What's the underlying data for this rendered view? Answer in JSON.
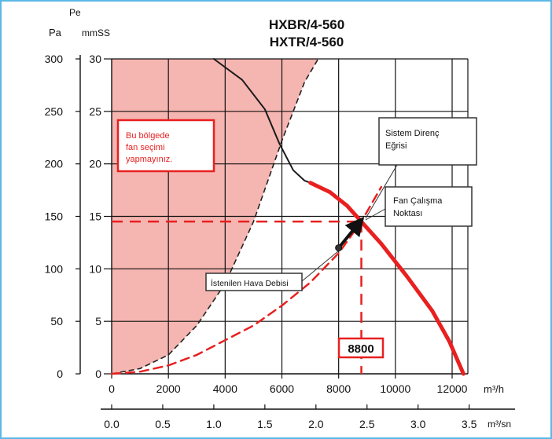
{
  "chart_data": {
    "type": "line",
    "title_lines": [
      "HXBR/4-560",
      "HXTR/4-560"
    ],
    "y_left": {
      "symbol": "Pe",
      "unit_pa": "Pa",
      "unit_mmss": "mmSS",
      "pa_ticks": [
        0,
        50,
        100,
        150,
        200,
        250,
        300
      ],
      "mmss_ticks": [
        0,
        5,
        10,
        15,
        20,
        25,
        30
      ],
      "ylim": [
        0,
        30
      ]
    },
    "x_top": {
      "unit": "m³/h",
      "ticks": [
        0,
        2000,
        4000,
        6000,
        8000,
        10000,
        12000
      ],
      "xlim": [
        0,
        12000
      ]
    },
    "x_bottom": {
      "unit": "m³/sn",
      "tick_labels": [
        "0.0",
        "0.5",
        "1.0",
        "1.5",
        "2.0",
        "2.5",
        "3.0",
        "3.5"
      ],
      "ticks": [
        0.0,
        0.5,
        1.0,
        1.5,
        2.0,
        2.5,
        3.0,
        3.5
      ]
    },
    "grid": true,
    "forbidden_zone": {
      "label_lines": [
        "Bu bölgede",
        "fan seçimi",
        "yapmayınız."
      ],
      "color": "#f5b5b1",
      "boundary": [
        [
          0,
          0
        ],
        [
          1000,
          0.5
        ],
        [
          2000,
          1.8
        ],
        [
          3000,
          4.6
        ],
        [
          4000,
          8.6
        ],
        [
          5000,
          14.5
        ],
        [
          6000,
          22.2
        ],
        [
          6800,
          27.8
        ],
        [
          7280,
          30
        ]
      ]
    },
    "series": [
      {
        "name": "fan_curve_black",
        "color": "#1a1a1a",
        "points": [
          [
            3600,
            30
          ],
          [
            4600,
            28.0
          ],
          [
            5400,
            25.2
          ],
          [
            5900,
            22.0
          ],
          [
            6400,
            19.4
          ],
          [
            6800,
            18.4
          ],
          [
            7000,
            18.2
          ]
        ]
      },
      {
        "name": "fan_curve_red",
        "color": "#e82020",
        "points": [
          [
            7000,
            18.2
          ],
          [
            7700,
            17.3
          ],
          [
            8300,
            16.0
          ],
          [
            8800,
            14.5
          ],
          [
            9500,
            12.4
          ],
          [
            10400,
            9.3
          ],
          [
            11300,
            6.0
          ],
          [
            11900,
            3.1
          ],
          [
            12400,
            0
          ]
        ]
      },
      {
        "name": "system_curve_dashed",
        "color": "#e82020",
        "points": [
          [
            0,
            0
          ],
          [
            1000,
            0.2
          ],
          [
            2000,
            0.8
          ],
          [
            3000,
            1.8
          ],
          [
            4000,
            3.2
          ],
          [
            5000,
            4.6
          ],
          [
            6000,
            6.5
          ],
          [
            7000,
            8.7
          ],
          [
            8000,
            11.5
          ],
          [
            8800,
            14.5
          ],
          [
            9500,
            17.8
          ]
        ]
      }
    ],
    "operating_point": {
      "x": 8800,
      "y": 14.5,
      "label": "8800"
    },
    "required_point": {
      "x": 8000,
      "y": 12.0
    },
    "annotations": {
      "system_curve": [
        "Sistem Direnç",
        "Eğrisi"
      ],
      "operating_point": [
        "Fan Çalışma",
        "Noktası"
      ],
      "required_flow": "İstenilen Hava Debisi"
    }
  }
}
